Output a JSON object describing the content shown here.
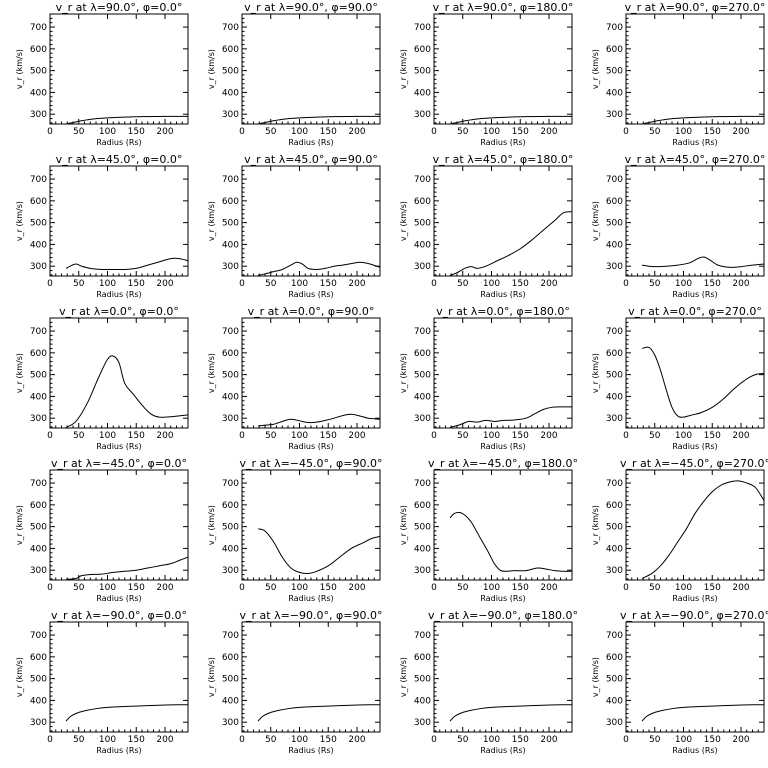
{
  "chart_data": [
    {
      "type": "line",
      "title": "v_r at λ=90.0°, φ=0.0°",
      "xlabel": "Radius (Rs)",
      "ylabel": "v_r (km/s)",
      "xlim": [
        0,
        240
      ],
      "ylim": [
        255,
        760
      ],
      "x": [
        28,
        40,
        55,
        75,
        100,
        150,
        200,
        240
      ],
      "y": [
        255,
        262,
        270,
        278,
        283,
        288,
        290,
        290
      ]
    },
    {
      "type": "line",
      "title": "v_r at λ=90.0°, φ=90.0°",
      "xlabel": "Radius (Rs)",
      "ylabel": "v_r (km/s)",
      "xlim": [
        0,
        240
      ],
      "ylim": [
        255,
        760
      ],
      "x": [
        28,
        40,
        55,
        75,
        100,
        150,
        200,
        240
      ],
      "y": [
        255,
        262,
        270,
        278,
        283,
        288,
        290,
        290
      ]
    },
    {
      "type": "line",
      "title": "v_r at λ=90.0°, φ=180.0°",
      "xlabel": "Radius (Rs)",
      "ylabel": "v_r (km/s)",
      "xlim": [
        0,
        240
      ],
      "ylim": [
        255,
        760
      ],
      "x": [
        28,
        40,
        55,
        75,
        100,
        150,
        200,
        240
      ],
      "y": [
        255,
        262,
        270,
        278,
        283,
        288,
        290,
        290
      ]
    },
    {
      "type": "line",
      "title": "v_r at λ=90.0°, φ=270.0°",
      "xlabel": "Radius (Rs)",
      "ylabel": "v_r (km/s)",
      "xlim": [
        0,
        240
      ],
      "ylim": [
        255,
        760
      ],
      "x": [
        28,
        40,
        55,
        75,
        100,
        150,
        200,
        240
      ],
      "y": [
        255,
        262,
        270,
        278,
        283,
        288,
        290,
        290
      ]
    },
    {
      "type": "line",
      "title": "v_r at λ=45.0°, φ=0.0°",
      "xlabel": "Radius (Rs)",
      "ylabel": "v_r (km/s)",
      "xlim": [
        0,
        240
      ],
      "ylim": [
        255,
        760
      ],
      "x": [
        28,
        35,
        45,
        55,
        70,
        90,
        110,
        130,
        150,
        170,
        190,
        210,
        225,
        240
      ],
      "y": [
        290,
        300,
        310,
        300,
        290,
        285,
        285,
        285,
        290,
        305,
        320,
        335,
        335,
        325
      ]
    },
    {
      "type": "line",
      "title": "v_r at λ=45.0°, φ=90.0°",
      "xlabel": "Radius (Rs)",
      "ylabel": "v_r (km/s)",
      "xlim": [
        0,
        240
      ],
      "ylim": [
        255,
        760
      ],
      "x": [
        28,
        40,
        55,
        70,
        85,
        95,
        105,
        115,
        130,
        145,
        160,
        175,
        190,
        205,
        220,
        240
      ],
      "y": [
        258,
        265,
        275,
        285,
        305,
        318,
        310,
        290,
        285,
        290,
        300,
        305,
        312,
        318,
        312,
        295
      ]
    },
    {
      "type": "line",
      "title": "v_r at λ=45.0°, φ=180.0°",
      "xlabel": "Radius (Rs)",
      "ylabel": "v_r (km/s)",
      "xlim": [
        0,
        240
      ],
      "ylim": [
        255,
        760
      ],
      "x": [
        28,
        40,
        55,
        65,
        75,
        90,
        110,
        130,
        150,
        170,
        190,
        210,
        225,
        240
      ],
      "y": [
        258,
        270,
        292,
        298,
        290,
        300,
        325,
        350,
        380,
        420,
        465,
        510,
        545,
        550
      ]
    },
    {
      "type": "line",
      "title": "v_r at λ=45.0°, φ=270.0°",
      "xlabel": "Radius (Rs)",
      "ylabel": "v_r (km/s)",
      "xlim": [
        0,
        240
      ],
      "ylim": [
        255,
        760
      ],
      "x": [
        28,
        40,
        55,
        70,
        90,
        110,
        125,
        135,
        145,
        160,
        180,
        200,
        220,
        240
      ],
      "y": [
        305,
        300,
        298,
        300,
        305,
        315,
        335,
        342,
        330,
        305,
        295,
        298,
        305,
        310
      ]
    },
    {
      "type": "line",
      "title": "v_r at λ=0.0°, φ=0.0°",
      "xlabel": "Radius (Rs)",
      "ylabel": "v_r (km/s)",
      "xlim": [
        0,
        240
      ],
      "ylim": [
        255,
        760
      ],
      "x": [
        28,
        45,
        65,
        85,
        100,
        110,
        120,
        130,
        145,
        160,
        175,
        190,
        215,
        240
      ],
      "y": [
        258,
        285,
        370,
        490,
        570,
        585,
        555,
        460,
        410,
        360,
        320,
        305,
        308,
        315
      ]
    },
    {
      "type": "line",
      "title": "v_r at λ=0.0°, φ=90.0°",
      "xlabel": "Radius (Rs)",
      "ylabel": "v_r (km/s)",
      "xlim": [
        0,
        240
      ],
      "ylim": [
        255,
        760
      ],
      "x": [
        28,
        40,
        55,
        70,
        85,
        100,
        115,
        130,
        145,
        160,
        175,
        190,
        205,
        220,
        240
      ],
      "y": [
        265,
        268,
        272,
        285,
        295,
        288,
        280,
        282,
        290,
        300,
        312,
        318,
        310,
        300,
        295
      ]
    },
    {
      "type": "line",
      "title": "v_r at λ=0.0°, φ=180.0°",
      "xlabel": "Radius (Rs)",
      "ylabel": "v_r (km/s)",
      "xlim": [
        0,
        240
      ],
      "ylim": [
        255,
        760
      ],
      "x": [
        28,
        45,
        60,
        75,
        90,
        105,
        120,
        140,
        160,
        175,
        190,
        205,
        220,
        240
      ],
      "y": [
        258,
        270,
        285,
        282,
        290,
        285,
        290,
        292,
        300,
        320,
        340,
        350,
        352,
        352
      ]
    },
    {
      "type": "line",
      "title": "v_r at λ=0.0°, φ=270.0°",
      "xlabel": "Radius (Rs)",
      "ylabel": "v_r (km/s)",
      "xlim": [
        0,
        240
      ],
      "ylim": [
        255,
        760
      ],
      "x": [
        28,
        40,
        50,
        60,
        70,
        80,
        90,
        100,
        115,
        130,
        150,
        170,
        190,
        210,
        225,
        240
      ],
      "y": [
        620,
        625,
        590,
        520,
        430,
        350,
        310,
        305,
        315,
        325,
        350,
        390,
        440,
        480,
        500,
        505
      ]
    },
    {
      "type": "line",
      "title": "v_r at λ=−45.0°, φ=0.0°",
      "xlabel": "Radius (Rs)",
      "ylabel": "v_r (km/s)",
      "xlim": [
        0,
        240
      ],
      "ylim": [
        255,
        760
      ],
      "x": [
        28,
        45,
        55,
        70,
        90,
        110,
        130,
        150,
        170,
        190,
        210,
        225,
        240
      ],
      "y": [
        258,
        262,
        275,
        280,
        282,
        290,
        295,
        300,
        310,
        320,
        330,
        345,
        360
      ]
    },
    {
      "type": "line",
      "title": "v_r at λ=−45.0°, φ=90.0°",
      "xlabel": "Radius (Rs)",
      "ylabel": "v_r (km/s)",
      "xlim": [
        0,
        240
      ],
      "ylim": [
        255,
        760
      ],
      "x": [
        28,
        40,
        55,
        70,
        85,
        100,
        115,
        130,
        150,
        170,
        190,
        210,
        225,
        240
      ],
      "y": [
        490,
        480,
        430,
        360,
        310,
        290,
        285,
        295,
        320,
        360,
        400,
        425,
        445,
        455
      ]
    },
    {
      "type": "line",
      "title": "v_r at λ=−45.0°, φ=180.0°",
      "xlabel": "Radius (Rs)",
      "ylabel": "v_r (km/s)",
      "xlim": [
        0,
        240
      ],
      "ylim": [
        255,
        760
      ],
      "x": [
        28,
        35,
        45,
        55,
        65,
        80,
        95,
        105,
        115,
        125,
        140,
        160,
        180,
        195,
        210,
        225,
        240
      ],
      "y": [
        540,
        560,
        565,
        550,
        520,
        450,
        380,
        330,
        300,
        295,
        298,
        298,
        310,
        305,
        298,
        295,
        295
      ]
    },
    {
      "type": "line",
      "title": "v_r at λ=−45.0°, φ=270.0°",
      "xlabel": "Radius (Rs)",
      "ylabel": "v_r (km/s)",
      "xlim": [
        0,
        240
      ],
      "ylim": [
        255,
        760
      ],
      "x": [
        28,
        45,
        60,
        75,
        90,
        105,
        120,
        135,
        150,
        165,
        180,
        195,
        210,
        225,
        240
      ],
      "y": [
        262,
        285,
        320,
        370,
        430,
        490,
        560,
        615,
        660,
        690,
        705,
        710,
        700,
        680,
        620
      ]
    },
    {
      "type": "line",
      "title": "v_r at λ=−90.0°, φ=0.0°",
      "xlabel": "Radius (Rs)",
      "ylabel": "v_r (km/s)",
      "xlim": [
        0,
        240
      ],
      "ylim": [
        255,
        760
      ],
      "x": [
        28,
        35,
        45,
        60,
        80,
        100,
        130,
        160,
        190,
        220,
        240
      ],
      "y": [
        305,
        325,
        340,
        352,
        362,
        368,
        372,
        375,
        378,
        380,
        380
      ]
    },
    {
      "type": "line",
      "title": "v_r at λ=−90.0°, φ=90.0°",
      "xlabel": "Radius (Rs)",
      "ylabel": "v_r (km/s)",
      "xlim": [
        0,
        240
      ],
      "ylim": [
        255,
        760
      ],
      "x": [
        28,
        35,
        45,
        60,
        80,
        100,
        130,
        160,
        190,
        220,
        240
      ],
      "y": [
        305,
        325,
        340,
        352,
        362,
        368,
        372,
        375,
        378,
        380,
        380
      ]
    },
    {
      "type": "line",
      "title": "v_r at λ=−90.0°, φ=180.0°",
      "xlabel": "Radius (Rs)",
      "ylabel": "v_r (km/s)",
      "xlim": [
        0,
        240
      ],
      "ylim": [
        255,
        760
      ],
      "x": [
        28,
        35,
        45,
        60,
        80,
        100,
        130,
        160,
        190,
        220,
        240
      ],
      "y": [
        305,
        325,
        340,
        352,
        362,
        368,
        372,
        375,
        378,
        380,
        380
      ]
    },
    {
      "type": "line",
      "title": "v_r at λ=−90.0°, φ=270.0°",
      "xlabel": "Radius (Rs)",
      "ylabel": "v_r (km/s)",
      "xlim": [
        0,
        240
      ],
      "ylim": [
        255,
        760
      ],
      "x": [
        28,
        35,
        45,
        60,
        80,
        100,
        130,
        160,
        190,
        220,
        240
      ],
      "y": [
        305,
        325,
        340,
        352,
        362,
        368,
        372,
        375,
        378,
        380,
        380
      ]
    }
  ],
  "x_ticks": [
    0,
    50,
    100,
    150,
    200
  ],
  "y_ticks": [
    300,
    400,
    500,
    600,
    700
  ]
}
